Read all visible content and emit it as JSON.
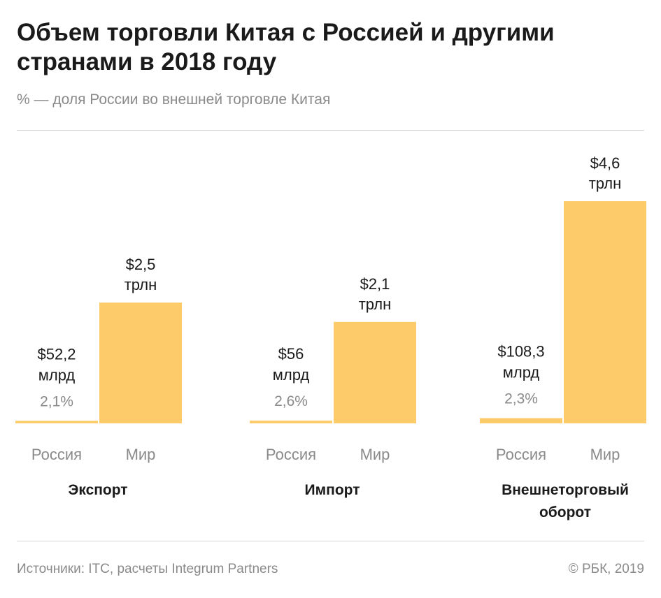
{
  "title": "Объем торговли Китая с Россией и другими странами в 2018 году",
  "subtitle": "% — доля России во внешней торговле Китая",
  "source": "Источники: ITC, расчеты Integrum Partners",
  "credit": "© РБК, 2019",
  "colors": {
    "bar": "#fdcb6a",
    "text": "#1a1a1a",
    "muted": "#8a8a8a"
  },
  "chart_data": {
    "type": "bar",
    "unit": "млрд $",
    "groups": [
      {
        "name": "Экспорт",
        "bars": [
          {
            "category": "Россия",
            "value": 52.2,
            "label": [
              "$52,2",
              "млрд"
            ],
            "share": "2,1%"
          },
          {
            "category": "Мир",
            "value": 2500,
            "label": [
              "$2,5",
              "трлн"
            ]
          }
        ]
      },
      {
        "name": "Импорт",
        "bars": [
          {
            "category": "Россия",
            "value": 56,
            "label": [
              "$56",
              "млрд"
            ],
            "share": "2,6%"
          },
          {
            "category": "Мир",
            "value": 2100,
            "label": [
              "$2,1",
              "трлн"
            ]
          }
        ]
      },
      {
        "name": "Внешнеторговый оборот",
        "bars": [
          {
            "category": "Россия",
            "value": 108.3,
            "label": [
              "$108,3",
              "млрд"
            ],
            "share": "2,3%"
          },
          {
            "category": "Мир",
            "value": 4600,
            "label": [
              "$4,6",
              "трлн"
            ]
          }
        ]
      }
    ]
  }
}
